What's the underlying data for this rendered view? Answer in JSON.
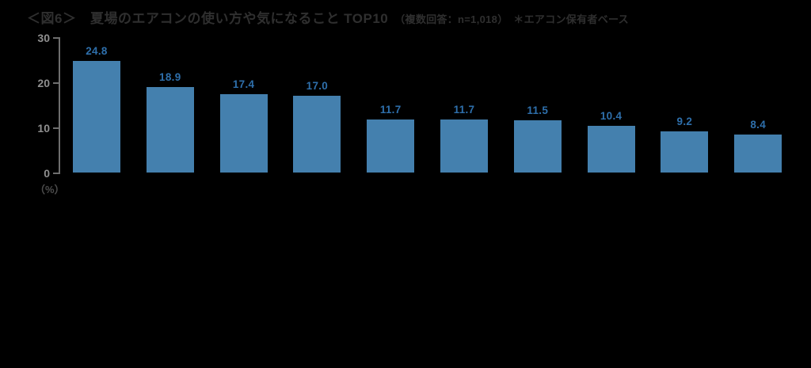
{
  "header": {
    "title_main": "＜図6＞　夏場のエアコンの使い方や気になること TOP10",
    "title_note": "（複数回答：n=1,018）　＊エアコン保有者ベース"
  },
  "chart_data": {
    "type": "bar",
    "title": "夏場のエアコンの使い方や気になること TOP10",
    "subtitle": "複数回答：n=1,018　＊エアコン保有者ベース",
    "values": [
      24.8,
      18.9,
      17.4,
      17.0,
      11.7,
      11.7,
      11.5,
      10.4,
      9.2,
      8.4
    ],
    "value_decimals": 1,
    "ylabel_unit": "（%）",
    "yticks": [
      30,
      20,
      10,
      0
    ],
    "ylim": [
      0,
      30
    ],
    "grid": false,
    "legend": "none",
    "data_labels": "above bars"
  },
  "colors": {
    "background": "#000000",
    "bar": "#4480ae",
    "value_label": "#2e6fab",
    "title": "#2f2f2f",
    "tick_label": "#8f8f8f",
    "axis_line": "#6e6e6e",
    "unit_label": "#4d4d4d"
  }
}
